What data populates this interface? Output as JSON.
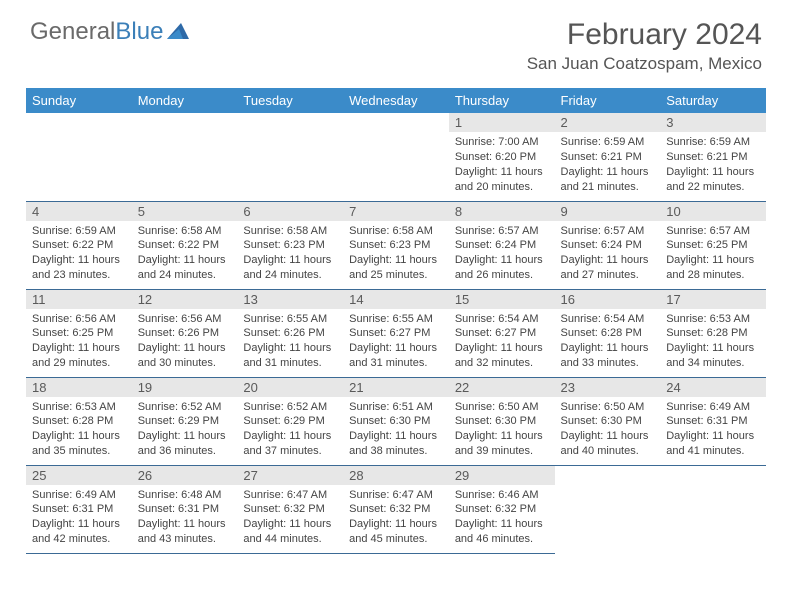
{
  "logo": {
    "general": "General",
    "blue": "Blue"
  },
  "title": "February 2024",
  "location": "San Juan Coatzospam, Mexico",
  "colors": {
    "header_bar": "#3b8bc9",
    "header_text": "#ffffff",
    "day_number_bg": "#e7e7e7",
    "day_number_text": "#5a5a5a",
    "cell_border": "#3b6a95",
    "body_text": "#444444",
    "title_text": "#555555",
    "logo_gray": "#6a6a6a",
    "logo_blue": "#3b7fb8"
  },
  "weekdays": [
    "Sunday",
    "Monday",
    "Tuesday",
    "Wednesday",
    "Thursday",
    "Friday",
    "Saturday"
  ],
  "first_weekday_index": 4,
  "days": [
    {
      "n": 1,
      "sunrise": "7:00 AM",
      "sunset": "6:20 PM",
      "dh": 11,
      "dm": 20
    },
    {
      "n": 2,
      "sunrise": "6:59 AM",
      "sunset": "6:21 PM",
      "dh": 11,
      "dm": 21
    },
    {
      "n": 3,
      "sunrise": "6:59 AM",
      "sunset": "6:21 PM",
      "dh": 11,
      "dm": 22
    },
    {
      "n": 4,
      "sunrise": "6:59 AM",
      "sunset": "6:22 PM",
      "dh": 11,
      "dm": 23
    },
    {
      "n": 5,
      "sunrise": "6:58 AM",
      "sunset": "6:22 PM",
      "dh": 11,
      "dm": 24
    },
    {
      "n": 6,
      "sunrise": "6:58 AM",
      "sunset": "6:23 PM",
      "dh": 11,
      "dm": 24
    },
    {
      "n": 7,
      "sunrise": "6:58 AM",
      "sunset": "6:23 PM",
      "dh": 11,
      "dm": 25
    },
    {
      "n": 8,
      "sunrise": "6:57 AM",
      "sunset": "6:24 PM",
      "dh": 11,
      "dm": 26
    },
    {
      "n": 9,
      "sunrise": "6:57 AM",
      "sunset": "6:24 PM",
      "dh": 11,
      "dm": 27
    },
    {
      "n": 10,
      "sunrise": "6:57 AM",
      "sunset": "6:25 PM",
      "dh": 11,
      "dm": 28
    },
    {
      "n": 11,
      "sunrise": "6:56 AM",
      "sunset": "6:25 PM",
      "dh": 11,
      "dm": 29
    },
    {
      "n": 12,
      "sunrise": "6:56 AM",
      "sunset": "6:26 PM",
      "dh": 11,
      "dm": 30
    },
    {
      "n": 13,
      "sunrise": "6:55 AM",
      "sunset": "6:26 PM",
      "dh": 11,
      "dm": 31
    },
    {
      "n": 14,
      "sunrise": "6:55 AM",
      "sunset": "6:27 PM",
      "dh": 11,
      "dm": 31
    },
    {
      "n": 15,
      "sunrise": "6:54 AM",
      "sunset": "6:27 PM",
      "dh": 11,
      "dm": 32
    },
    {
      "n": 16,
      "sunrise": "6:54 AM",
      "sunset": "6:28 PM",
      "dh": 11,
      "dm": 33
    },
    {
      "n": 17,
      "sunrise": "6:53 AM",
      "sunset": "6:28 PM",
      "dh": 11,
      "dm": 34
    },
    {
      "n": 18,
      "sunrise": "6:53 AM",
      "sunset": "6:28 PM",
      "dh": 11,
      "dm": 35
    },
    {
      "n": 19,
      "sunrise": "6:52 AM",
      "sunset": "6:29 PM",
      "dh": 11,
      "dm": 36
    },
    {
      "n": 20,
      "sunrise": "6:52 AM",
      "sunset": "6:29 PM",
      "dh": 11,
      "dm": 37
    },
    {
      "n": 21,
      "sunrise": "6:51 AM",
      "sunset": "6:30 PM",
      "dh": 11,
      "dm": 38
    },
    {
      "n": 22,
      "sunrise": "6:50 AM",
      "sunset": "6:30 PM",
      "dh": 11,
      "dm": 39
    },
    {
      "n": 23,
      "sunrise": "6:50 AM",
      "sunset": "6:30 PM",
      "dh": 11,
      "dm": 40
    },
    {
      "n": 24,
      "sunrise": "6:49 AM",
      "sunset": "6:31 PM",
      "dh": 11,
      "dm": 41
    },
    {
      "n": 25,
      "sunrise": "6:49 AM",
      "sunset": "6:31 PM",
      "dh": 11,
      "dm": 42
    },
    {
      "n": 26,
      "sunrise": "6:48 AM",
      "sunset": "6:31 PM",
      "dh": 11,
      "dm": 43
    },
    {
      "n": 27,
      "sunrise": "6:47 AM",
      "sunset": "6:32 PM",
      "dh": 11,
      "dm": 44
    },
    {
      "n": 28,
      "sunrise": "6:47 AM",
      "sunset": "6:32 PM",
      "dh": 11,
      "dm": 45
    },
    {
      "n": 29,
      "sunrise": "6:46 AM",
      "sunset": "6:32 PM",
      "dh": 11,
      "dm": 46
    }
  ],
  "labels": {
    "sunrise": "Sunrise:",
    "sunset": "Sunset:",
    "daylight_prefix": "Daylight:",
    "hours_word": "hours",
    "and_word": "and",
    "minutes_word": "minutes."
  }
}
